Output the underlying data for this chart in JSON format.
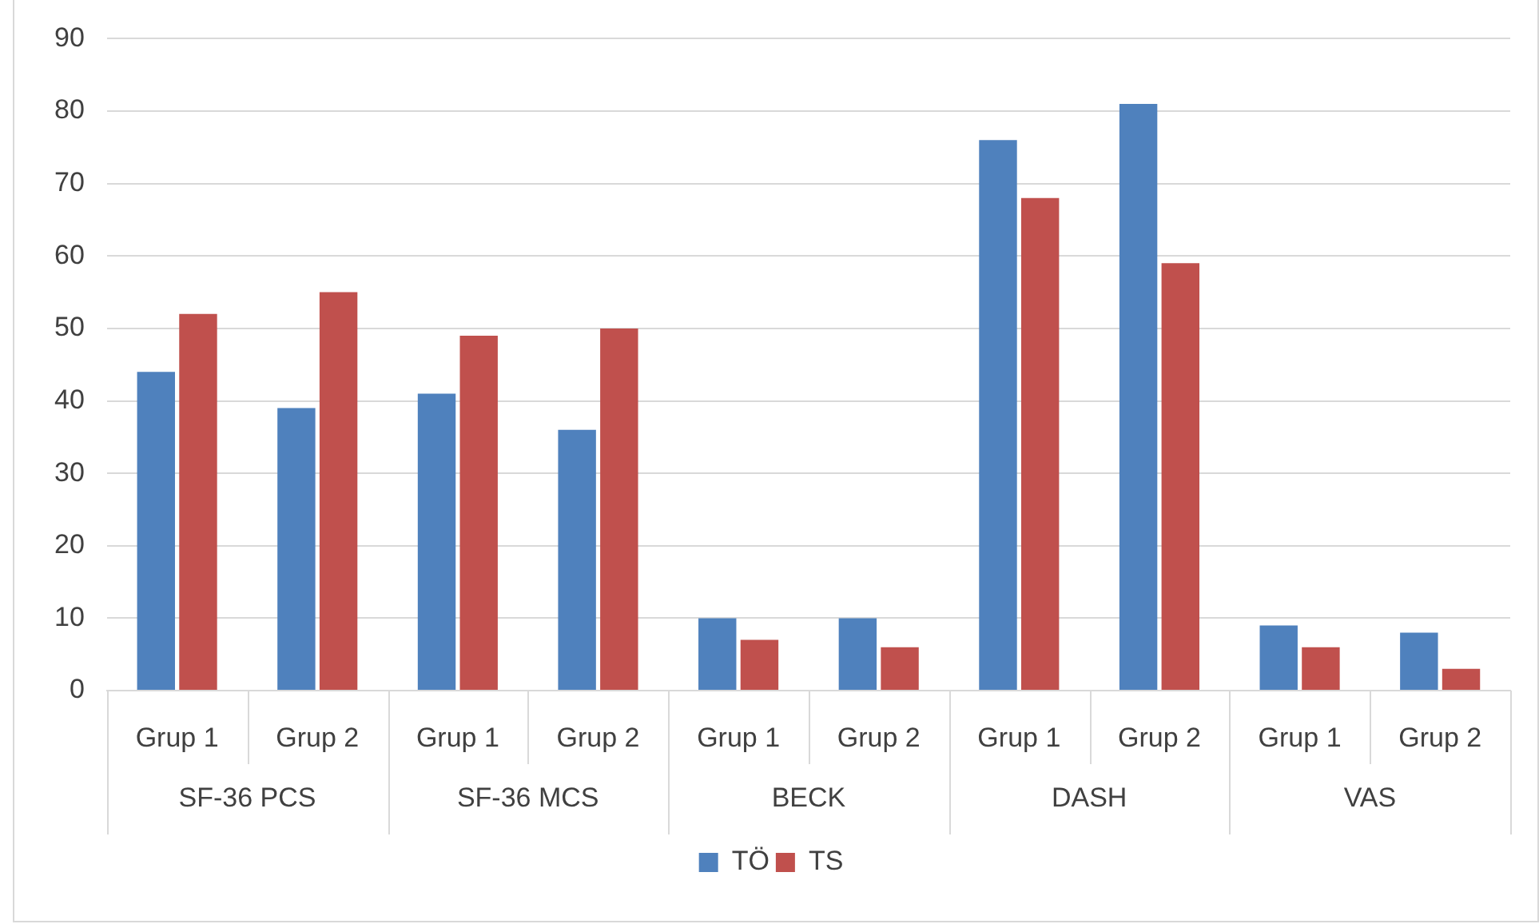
{
  "chart_data": {
    "type": "bar",
    "categories": [
      "Grup 1",
      "Grup 2",
      "Grup 1",
      "Grup 2",
      "Grup 1",
      "Grup 2",
      "Grup 1",
      "Grup 2",
      "Grup 1",
      "Grup 2"
    ],
    "annotations": [
      "SF-36 PCS",
      "SF-36 MCS",
      "BECK",
      "DASH",
      "VAS"
    ],
    "series": [
      {
        "name": "TÖ",
        "color": "#4f81bd",
        "values": [
          44,
          39,
          41,
          36,
          10,
          10,
          76,
          81,
          9,
          8
        ]
      },
      {
        "name": "TS",
        "color": "#c0504d",
        "values": [
          52,
          55,
          49,
          50,
          7,
          6,
          68,
          59,
          6,
          3
        ]
      }
    ],
    "ylim": [
      0,
      90
    ],
    "yticks": [
      0,
      10,
      20,
      30,
      40,
      50,
      60,
      70,
      80,
      90
    ],
    "grid": "y",
    "legend": "bottom"
  }
}
